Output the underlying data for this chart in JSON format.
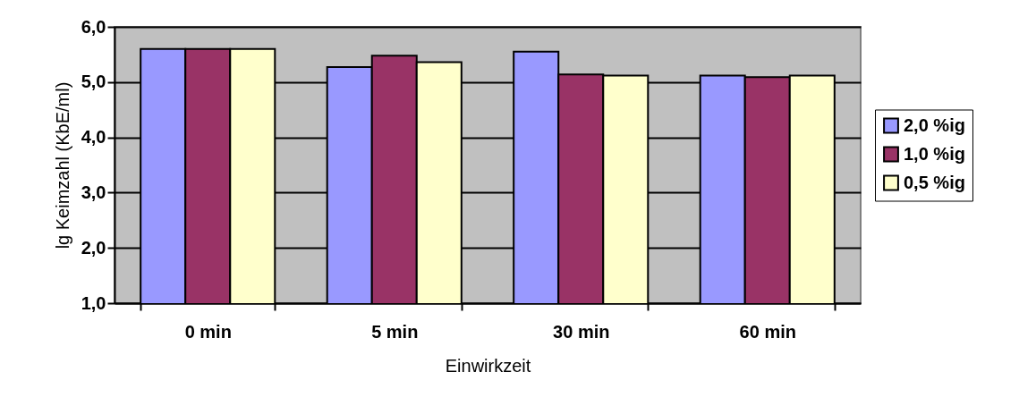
{
  "chart_data": {
    "type": "bar",
    "xlabel": "Einwirkzeit",
    "ylabel": "lg Keimzahl (KbE/ml)",
    "categories": [
      "0 min",
      "5 min",
      "30 min",
      "60 min"
    ],
    "series": [
      {
        "name": "2,0 %ig",
        "color": "#9999ff",
        "values": [
          5.6,
          5.27,
          5.55,
          5.12
        ]
      },
      {
        "name": "1,0 %ig",
        "color": "#993366",
        "values": [
          5.6,
          5.48,
          5.14,
          5.09
        ]
      },
      {
        "name": "0,5 %ig",
        "color": "#ffffcc",
        "values": [
          5.6,
          5.36,
          5.12,
          5.12
        ]
      }
    ],
    "ylim": [
      1,
      6
    ],
    "yticks": [
      {
        "value": 1,
        "label": "1,0"
      },
      {
        "value": 2,
        "label": "2,0"
      },
      {
        "value": 3,
        "label": "3,0"
      },
      {
        "value": 4,
        "label": "4,0"
      },
      {
        "value": 5,
        "label": "5,0"
      },
      {
        "value": 6,
        "label": "6,0"
      }
    ],
    "grid": "y",
    "legend": "right"
  }
}
